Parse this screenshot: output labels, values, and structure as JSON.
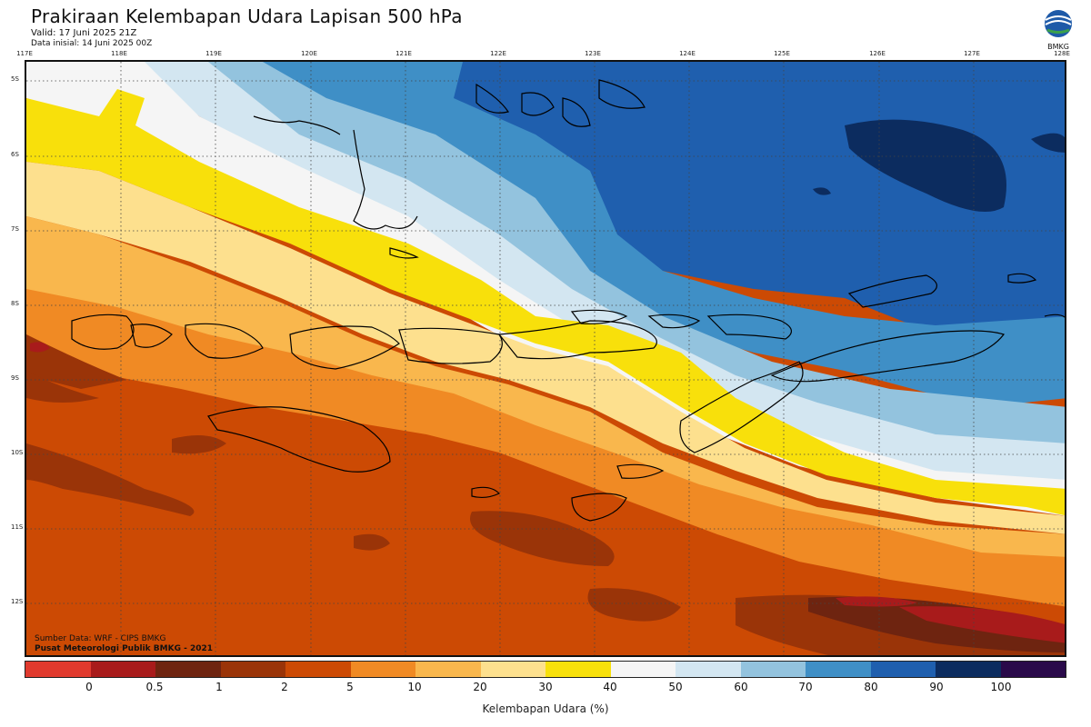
{
  "header": {
    "title": "Prakiraan Kelembapan Udara Lapisan 500 hPa",
    "valid": "Valid: 17 Juni 2025 21Z",
    "initial": "Data inisial: 14 Juni 2025 00Z"
  },
  "logo": {
    "text": "BMKG",
    "icon": "bmkg-logo-icon"
  },
  "map": {
    "lon_ticks": [
      "117E",
      "118E",
      "119E",
      "120E",
      "121E",
      "122E",
      "123E",
      "124E",
      "125E",
      "126E",
      "127E",
      "128E"
    ],
    "lat_ticks": [
      "5S",
      "6S",
      "7S",
      "8S",
      "9S",
      "10S",
      "11S",
      "12S"
    ]
  },
  "credits": {
    "source": "Sumber Data: WRF - CIPS BMKG",
    "publisher": "Pusat Meteorologi Publik BMKG - 2021"
  },
  "colorbar": {
    "title": "Kelembapan Udara (%)",
    "labels": [
      "0",
      "0.5",
      "1",
      "2",
      "5",
      "10",
      "20",
      "30",
      "40",
      "50",
      "60",
      "70",
      "80",
      "90",
      "100"
    ],
    "colors": [
      "#e03a2e",
      "#a81b1b",
      "#6e2410",
      "#9a3408",
      "#cc4a04",
      "#f08a24",
      "#f9b74d",
      "#fde08e",
      "#f8e00b",
      "#f5f5f5",
      "#d3e6f1",
      "#93c3de",
      "#3f8fc6",
      "#1f5fae",
      "#0c2c5f",
      "#2a0a4a"
    ]
  }
}
